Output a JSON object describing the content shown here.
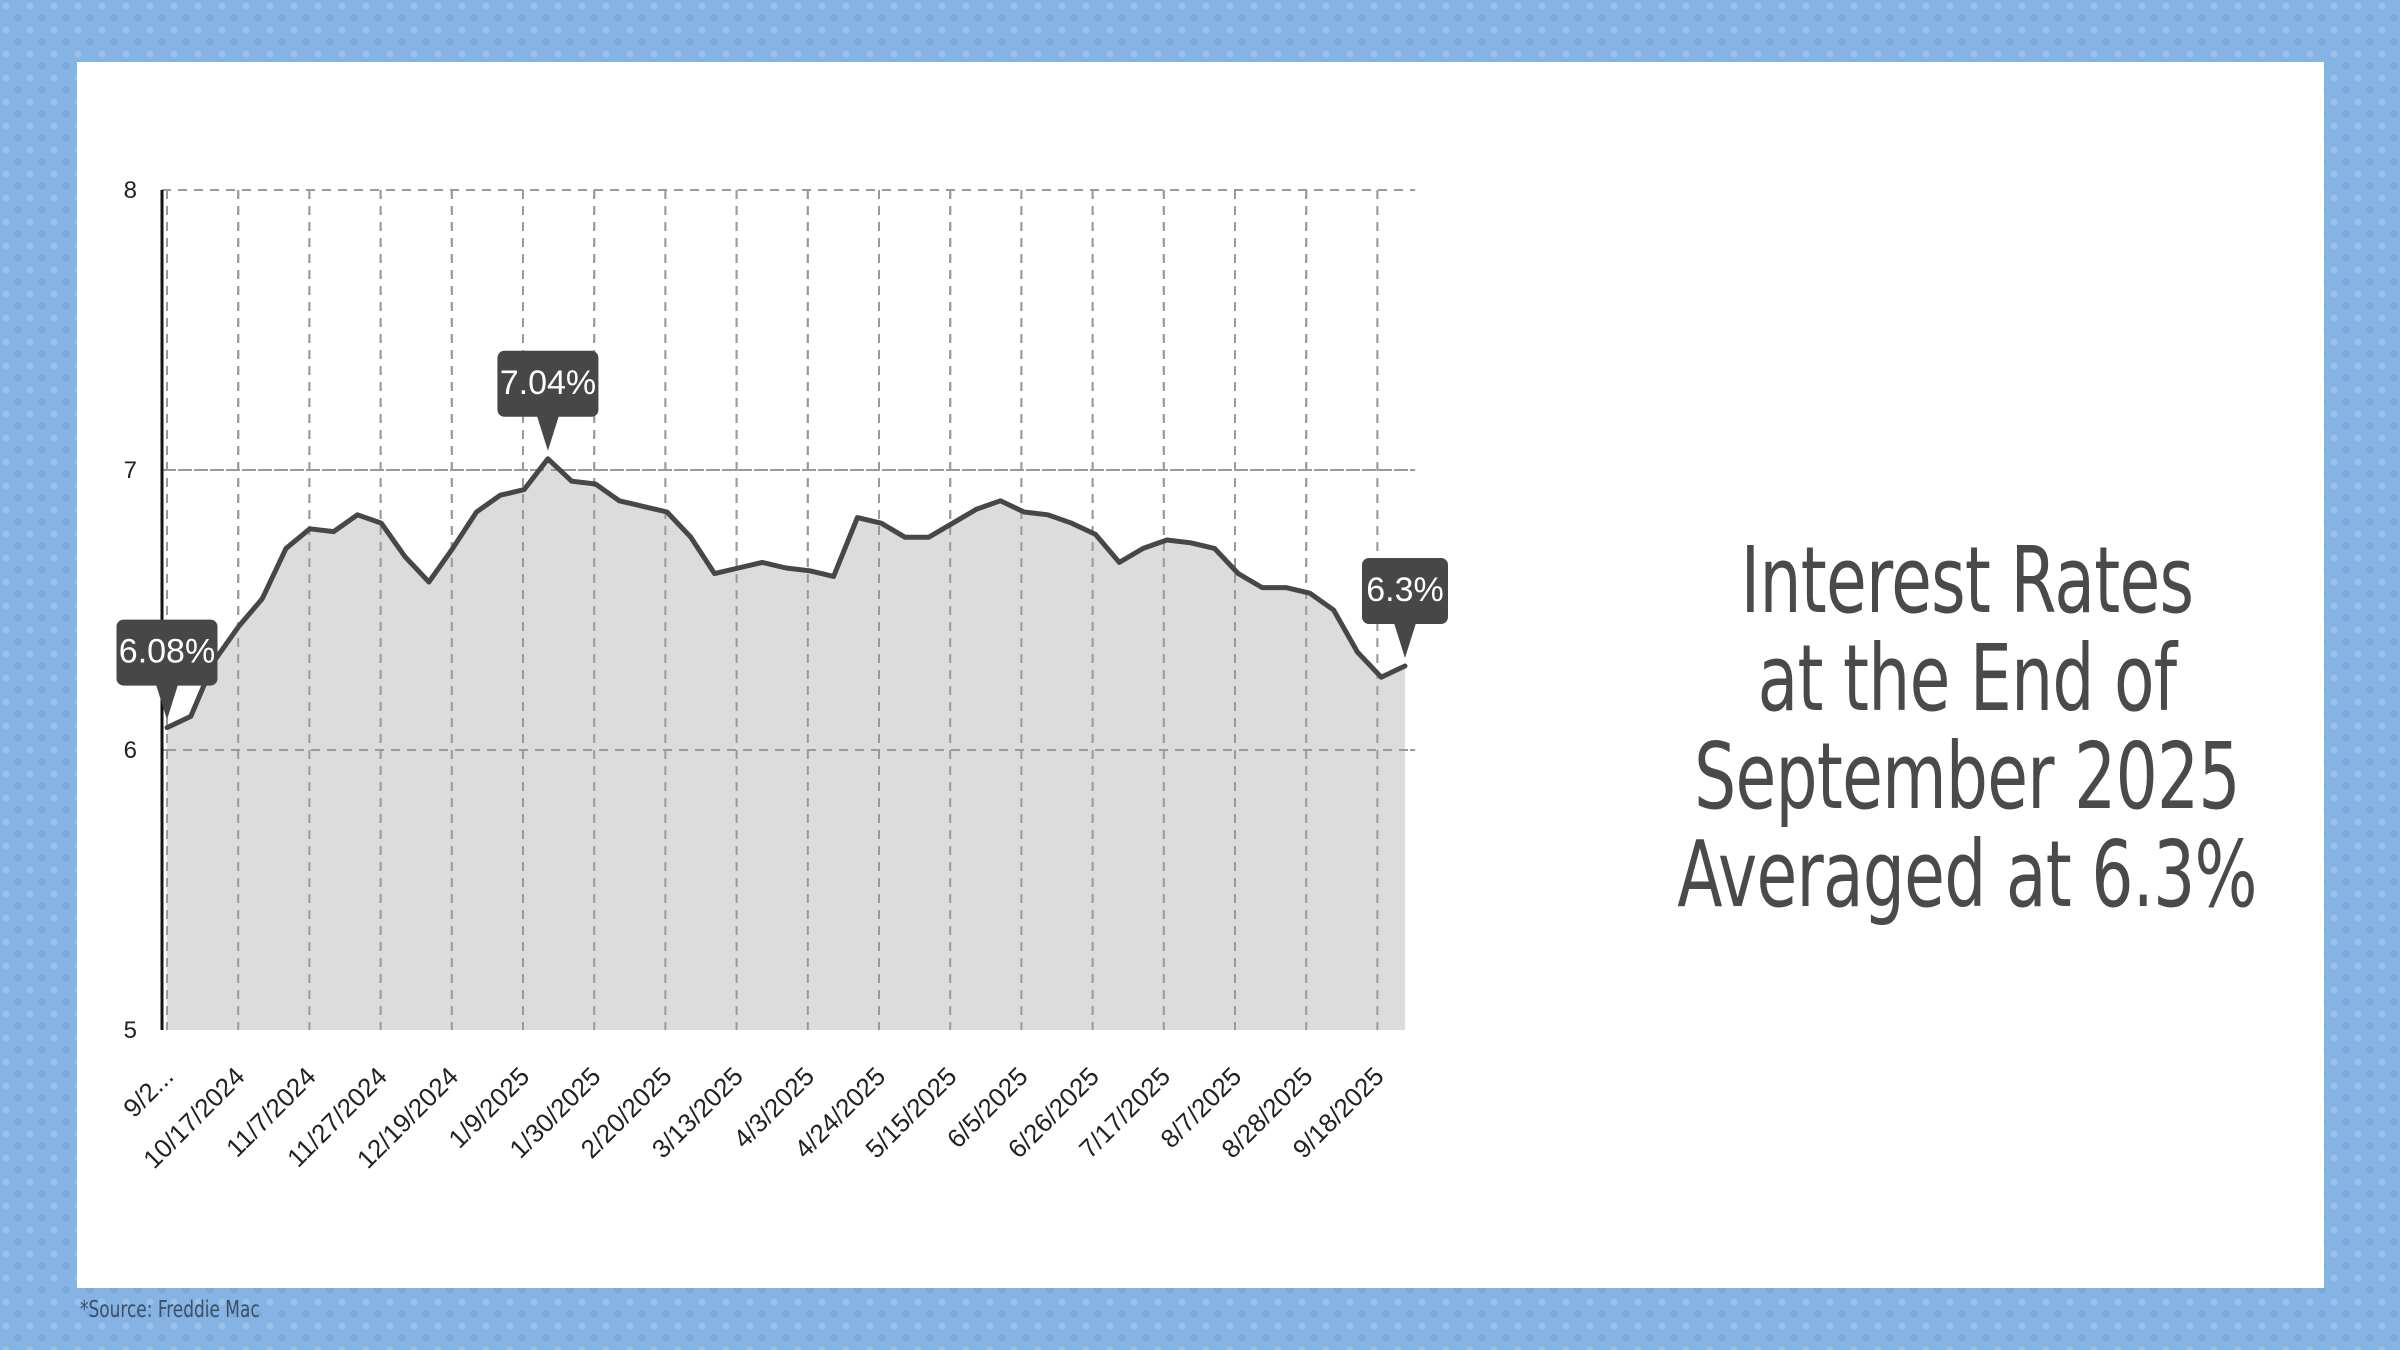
{
  "title_lines": [
    "Interest Rates",
    "at the End of",
    "September 2025",
    "Averaged at 6.3%"
  ],
  "source": "*Source: Freddie Mac",
  "colors": {
    "frame": "#85b3e3",
    "line": "#474747",
    "area": "#dcdcdc",
    "callout": "#474747",
    "grid": "#9a9a9a",
    "title": "#4a4a4a"
  },
  "chart_data": {
    "type": "area",
    "ylim": [
      5,
      8
    ],
    "yticks": [
      5,
      6,
      7,
      8
    ],
    "grid": true,
    "tick_labels": [
      "9/2...",
      "10/17/2024",
      "11/7/2024",
      "11/27/2024",
      "12/19/2024",
      "1/9/2025",
      "1/30/2025",
      "2/20/2025",
      "3/13/2025",
      "4/3/2025",
      "4/24/2025",
      "5/15/2025",
      "6/5/2025",
      "6/26/2025",
      "7/17/2025",
      "8/7/2025",
      "8/28/2025",
      "9/18/2025"
    ],
    "values": [
      6.08,
      6.12,
      6.32,
      6.44,
      6.54,
      6.72,
      6.79,
      6.78,
      6.84,
      6.81,
      6.69,
      6.6,
      6.72,
      6.85,
      6.91,
      6.93,
      7.04,
      6.96,
      6.95,
      6.89,
      6.87,
      6.85,
      6.76,
      6.63,
      6.65,
      6.67,
      6.65,
      6.64,
      6.62,
      6.83,
      6.81,
      6.76,
      6.76,
      6.81,
      6.86,
      6.89,
      6.85,
      6.84,
      6.81,
      6.77,
      6.67,
      6.72,
      6.75,
      6.74,
      6.72,
      6.63,
      6.58,
      6.58,
      6.56,
      6.5,
      6.35,
      6.26,
      6.3
    ],
    "callouts": [
      {
        "index": 0,
        "label": "6.08%"
      },
      {
        "index": 16,
        "label": "7.04%"
      },
      {
        "index": 52,
        "label": "6.3%"
      }
    ]
  }
}
